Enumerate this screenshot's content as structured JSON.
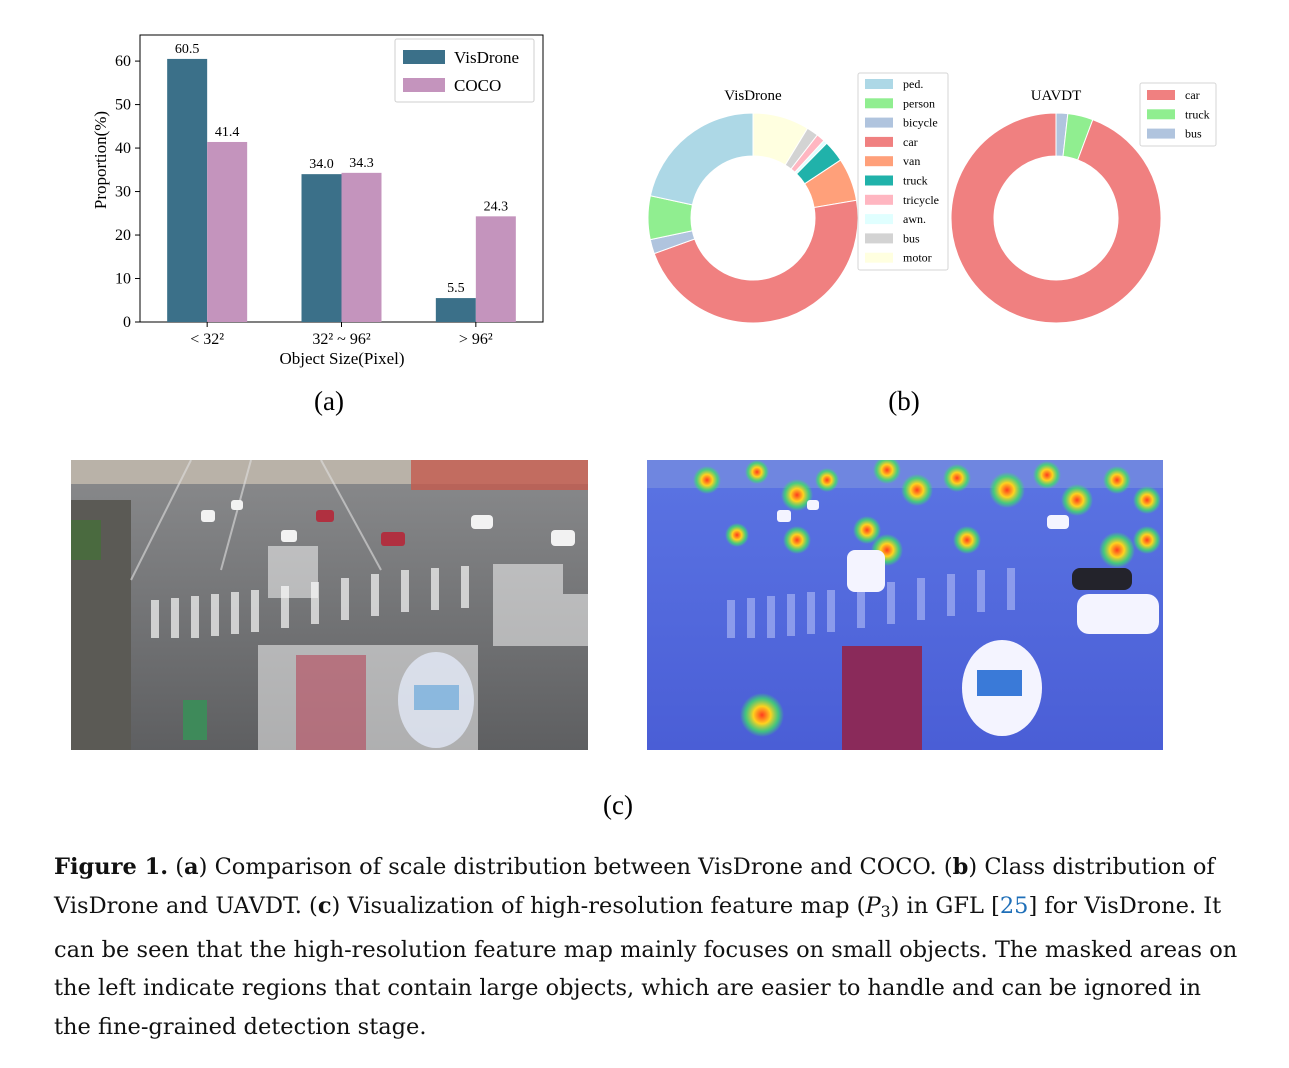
{
  "chart_data": [
    {
      "type": "bar",
      "panel": "(a)",
      "categories": [
        "< 32²",
        "32² ~ 96²",
        "> 96²"
      ],
      "series": [
        {
          "name": "VisDrone",
          "values": [
            60.5,
            34.0,
            5.5
          ],
          "value_labels": [
            "60.5",
            "34.0",
            "5.5"
          ],
          "color": "#3b7089"
        },
        {
          "name": "COCO",
          "values": [
            41.4,
            34.3,
            24.3
          ],
          "value_labels": [
            "41.4",
            "34.3",
            "24.3"
          ],
          "color": "#c494bd"
        }
      ],
      "xlabel": "Object Size(Pixel)",
      "ylabel": "Proportion(%)",
      "ylim": [
        0,
        66
      ],
      "yticks": [
        "0",
        "10",
        "20",
        "30",
        "40",
        "50",
        "60"
      ],
      "grid": false,
      "legend": "top-right"
    },
    {
      "type": "pie",
      "variant": "donut",
      "panel": "(b)",
      "title": "VisDrone",
      "labels": [
        "ped.",
        "person",
        "bicycle",
        "car",
        "van",
        "truck",
        "tricycle",
        "awn.",
        "bus",
        "motor"
      ],
      "colors": [
        "#add8e6",
        "#90ee90",
        "#b0c4de",
        "#f08080",
        "#ffa07a",
        "#20b2aa",
        "#ffb6c1",
        "#e0ffff",
        "#d3d3d3",
        "#ffffe0"
      ],
      "slice_order": [
        "motor",
        "bus",
        "tricycle",
        "awn.",
        "truck",
        "van",
        "car",
        "bicycle",
        "person",
        "ped."
      ],
      "values": {
        "motor": 8.7,
        "bus": 1.8,
        "tricycle": 1.3,
        "awn.": 0.6,
        "truck": 3.3,
        "van": 6.6,
        "car": 47.2,
        "bicycle": 2.2,
        "person": 6.7,
        "ped.": 21.6
      },
      "legend": "right"
    },
    {
      "type": "pie",
      "variant": "donut",
      "panel": "(b)",
      "title": "UAVDT",
      "labels": [
        "car",
        "truck",
        "bus"
      ],
      "colors": [
        "#f08080",
        "#90ee90",
        "#b0c4de"
      ],
      "slice_order": [
        "bus",
        "truck",
        "car"
      ],
      "values": {
        "bus": 1.8,
        "truck": 3.9,
        "car": 94.3
      },
      "legend": "right"
    }
  ],
  "panels": {
    "a": "(a)",
    "b": "(b)",
    "c": "(c)"
  },
  "caption": {
    "label": "Figure 1.",
    "a_letter": "a",
    "a_text": "Comparison of scale distribution between VisDrone and COCO. (",
    "b_letter": "b",
    "b_text": "Class distribution of VisDrone and UAVDT. (",
    "c_letter": "c",
    "c_text": "Visualization of high-resolution feature map (",
    "p_symbol": "P",
    "p_sub": "3",
    "gfl_text": ") in GFL [",
    "ref": "25",
    "rest": "] for VisDrone. It can be seen that the high-resolution feature map mainly focuses on small objects. The masked areas on the left indicate regions that contain large objects, which are easier to handle and can be ignored in the fine-grained detection stage."
  },
  "colors": {
    "road": "#6f7072",
    "heatmap": "#5a6fe0",
    "ref_link": "#1f6fb8"
  }
}
